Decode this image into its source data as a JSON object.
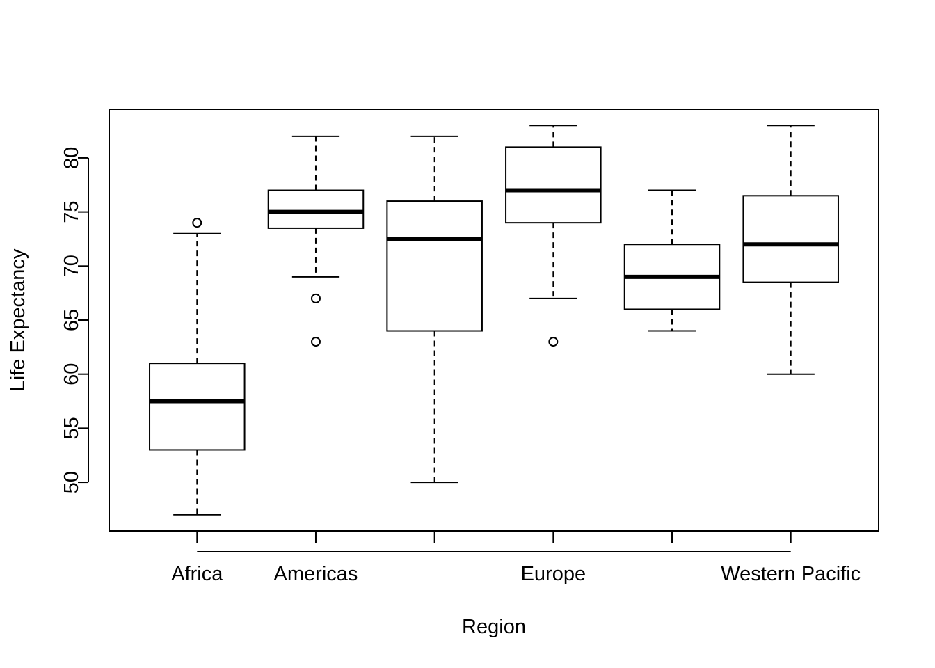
{
  "chart_data": {
    "type": "box",
    "title": "",
    "xlabel": "Region",
    "ylabel": "Life Expectancy",
    "ylim": [
      45.5,
      84.5
    ],
    "yticks": [
      50,
      55,
      60,
      65,
      70,
      75,
      80
    ],
    "grid": false,
    "categories": [
      "Africa",
      "Americas",
      "",
      "Europe",
      "",
      "Western Pacific"
    ],
    "boxes": [
      {
        "whisker_low": 47,
        "q1": 53,
        "median": 57.5,
        "q3": 61,
        "whisker_high": 73,
        "outliers": [
          74
        ]
      },
      {
        "whisker_low": 69,
        "q1": 73.5,
        "median": 75,
        "q3": 77,
        "whisker_high": 82,
        "outliers": [
          67,
          63
        ]
      },
      {
        "whisker_low": 50,
        "q1": 64,
        "median": 72.5,
        "q3": 76,
        "whisker_high": 82,
        "outliers": []
      },
      {
        "whisker_low": 67,
        "q1": 74,
        "median": 77,
        "q3": 81,
        "whisker_high": 83,
        "outliers": [
          63
        ]
      },
      {
        "whisker_low": 64,
        "q1": 66,
        "median": 69,
        "q3": 72,
        "whisker_high": 77,
        "outliers": []
      },
      {
        "whisker_low": 60,
        "q1": 68.5,
        "median": 72,
        "q3": 76.5,
        "whisker_high": 83,
        "outliers": []
      }
    ]
  }
}
